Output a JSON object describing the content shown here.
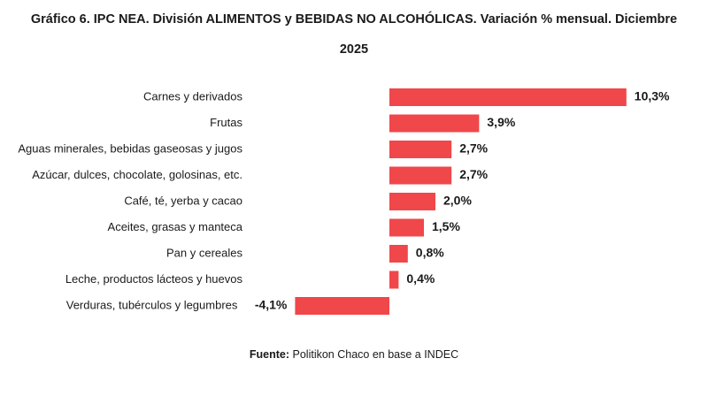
{
  "title_line1": "Gráfico 6. IPC NEA. División ALIMENTOS y BEBIDAS NO ALCOHÓLICAS. Variación % mensual. Diciembre",
  "title_line2": "2025",
  "source_label": "Fuente:",
  "source_text": " Politikon Chaco en base a INDEC",
  "bar_color": "#f0474b",
  "chart_data": {
    "type": "bar",
    "orientation": "horizontal",
    "title": "Gráfico 6. IPC NEA. División ALIMENTOS y BEBIDAS NO ALCOHÓLICAS. Variación % mensual. Diciembre 2025",
    "categories": [
      "Carnes y derivados",
      "Frutas",
      "Aguas minerales, bebidas gaseosas y jugos",
      "Azúcar, dulces, chocolate, golosinas, etc.",
      "Café, té, yerba y cacao",
      "Aceites, grasas y manteca",
      "Pan y cereales",
      "Leche, productos lácteos y huevos",
      "Verduras, tubérculos y legumbres"
    ],
    "values": [
      10.3,
      3.9,
      2.7,
      2.7,
      2.0,
      1.5,
      0.8,
      0.4,
      -4.1
    ],
    "value_labels": [
      "10,3%",
      "3,9%",
      "2,7%",
      "2,7%",
      "2,0%",
      "1,5%",
      "0,8%",
      "0,4%",
      "-4,1%"
    ],
    "grid": false,
    "legend": "none"
  }
}
